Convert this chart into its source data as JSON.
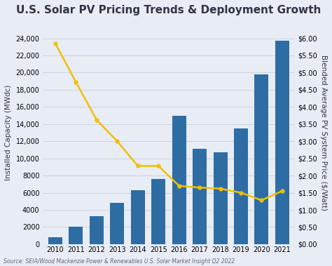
{
  "title": "U.S. Solar PV Pricing Trends & Deployment Growth",
  "years": [
    2010,
    2011,
    2012,
    2013,
    2014,
    2015,
    2016,
    2017,
    2018,
    2019,
    2020,
    2021
  ],
  "capacity_mwdc": [
    850,
    2000,
    3300,
    4800,
    6300,
    7600,
    15000,
    11100,
    10700,
    13500,
    19800,
    23700
  ],
  "price_per_watt": [
    5.85,
    4.72,
    3.62,
    3.0,
    2.28,
    2.28,
    1.7,
    1.65,
    1.62,
    1.5,
    1.28,
    1.55
  ],
  "bar_color": "#2e6da4",
  "line_color": "#f0c000",
  "background_color": "#e8ecf5",
  "ylabel_left": "Installed Capacity (MWdc)",
  "ylabel_right": "Blended Average PV System Price ($/Watt)",
  "ylim_left": [
    0,
    26000
  ],
  "ylim_right": [
    0,
    6.5
  ],
  "yticks_left": [
    0,
    2000,
    4000,
    6000,
    8000,
    10000,
    12000,
    14000,
    16000,
    18000,
    20000,
    22000,
    24000
  ],
  "ytick_labels_left": [
    "0",
    "2000",
    "4000",
    "6000",
    "8000",
    "10,000",
    "12,000",
    "14,000",
    "16,000",
    "18,000",
    "20,000",
    "22,000",
    "24,000"
  ],
  "yticks_right": [
    0.0,
    0.5,
    1.0,
    1.5,
    2.0,
    2.5,
    3.0,
    3.5,
    4.0,
    4.5,
    5.0,
    5.5,
    6.0
  ],
  "ytick_labels_right": [
    "$0.00",
    "$0.50",
    "$1.00",
    "$1.50",
    "$2.00",
    "$2.50",
    "$3.00",
    "$3.50",
    "$4.00",
    "$4.50",
    "$5.00",
    "$5.50",
    "$6.00"
  ],
  "source_text": "Source: SEIA/Wood Mackenzie Power & Renewables U.S. Solar Market Insight Q2 2022",
  "title_fontsize": 11,
  "axis_label_fontsize": 7.5,
  "tick_fontsize": 7,
  "source_fontsize": 5.5,
  "grid_color": "#c8cdd8",
  "text_color": "#333344"
}
